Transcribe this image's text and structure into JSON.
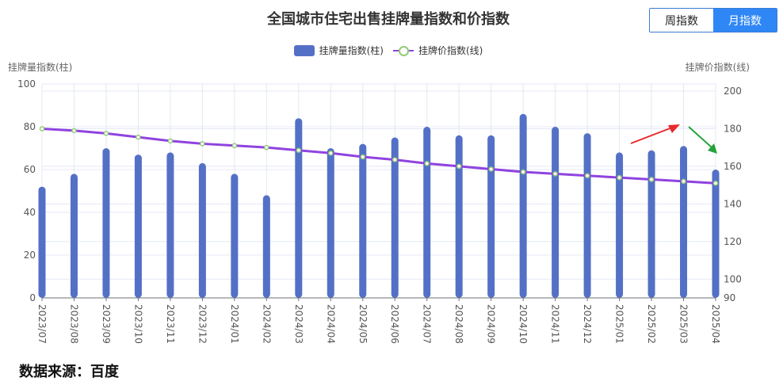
{
  "title": "全国城市住宅出售挂牌量指数和价指数",
  "toggle": {
    "weekly": "周指数",
    "monthly": "月指数",
    "active": "monthly"
  },
  "legend": {
    "bar_label": "挂牌量指数(柱)",
    "line_label": "挂牌价指数(线)"
  },
  "source": "数据来源：百度",
  "colors": {
    "bar": "#5470c6",
    "line": "#8f43e0",
    "dot_border": "#91cc75",
    "grid": "#e4e8f4",
    "red_arrow": "#e8292b",
    "green_arrow": "#22a33a"
  },
  "chart_data": {
    "type": "bar",
    "categories": [
      "2023/07",
      "2023/08",
      "2023/09",
      "2023/10",
      "2023/11",
      "2023/12",
      "2024/01",
      "2024/02",
      "2024/03",
      "2024/04",
      "2024/05",
      "2024/06",
      "2024/07",
      "2024/08",
      "2024/09",
      "2024/10",
      "2024/11",
      "2024/12",
      "2025/01",
      "2025/02",
      "2025/03",
      "2025/04"
    ],
    "series": [
      {
        "name": "挂牌量指数(柱)",
        "type": "bar",
        "axis": "left",
        "values": [
          52,
          58,
          70,
          67,
          68,
          63,
          58,
          48,
          84,
          70,
          72,
          75,
          80,
          76,
          76,
          86,
          80,
          77,
          68,
          69,
          71,
          60
        ]
      },
      {
        "name": "挂牌价指数(线)",
        "type": "line",
        "axis": "right",
        "values": [
          180,
          179,
          177.5,
          175.5,
          173.5,
          172,
          171,
          170,
          168.5,
          167,
          165,
          163.5,
          161.5,
          160,
          158.5,
          157,
          156,
          155,
          154,
          153,
          152,
          151
        ]
      }
    ],
    "yaxis_left": {
      "label": "挂牌量指数(柱)",
      "min": 0,
      "max": 100,
      "ticks": [
        0,
        20,
        40,
        60,
        80,
        100
      ]
    },
    "yaxis_right": {
      "label": "挂牌价指数(线)",
      "min": 90,
      "max": 200,
      "ticks": [
        90,
        100,
        120,
        140,
        160,
        180,
        200
      ]
    },
    "grid": true,
    "legend_position": "top-center"
  }
}
